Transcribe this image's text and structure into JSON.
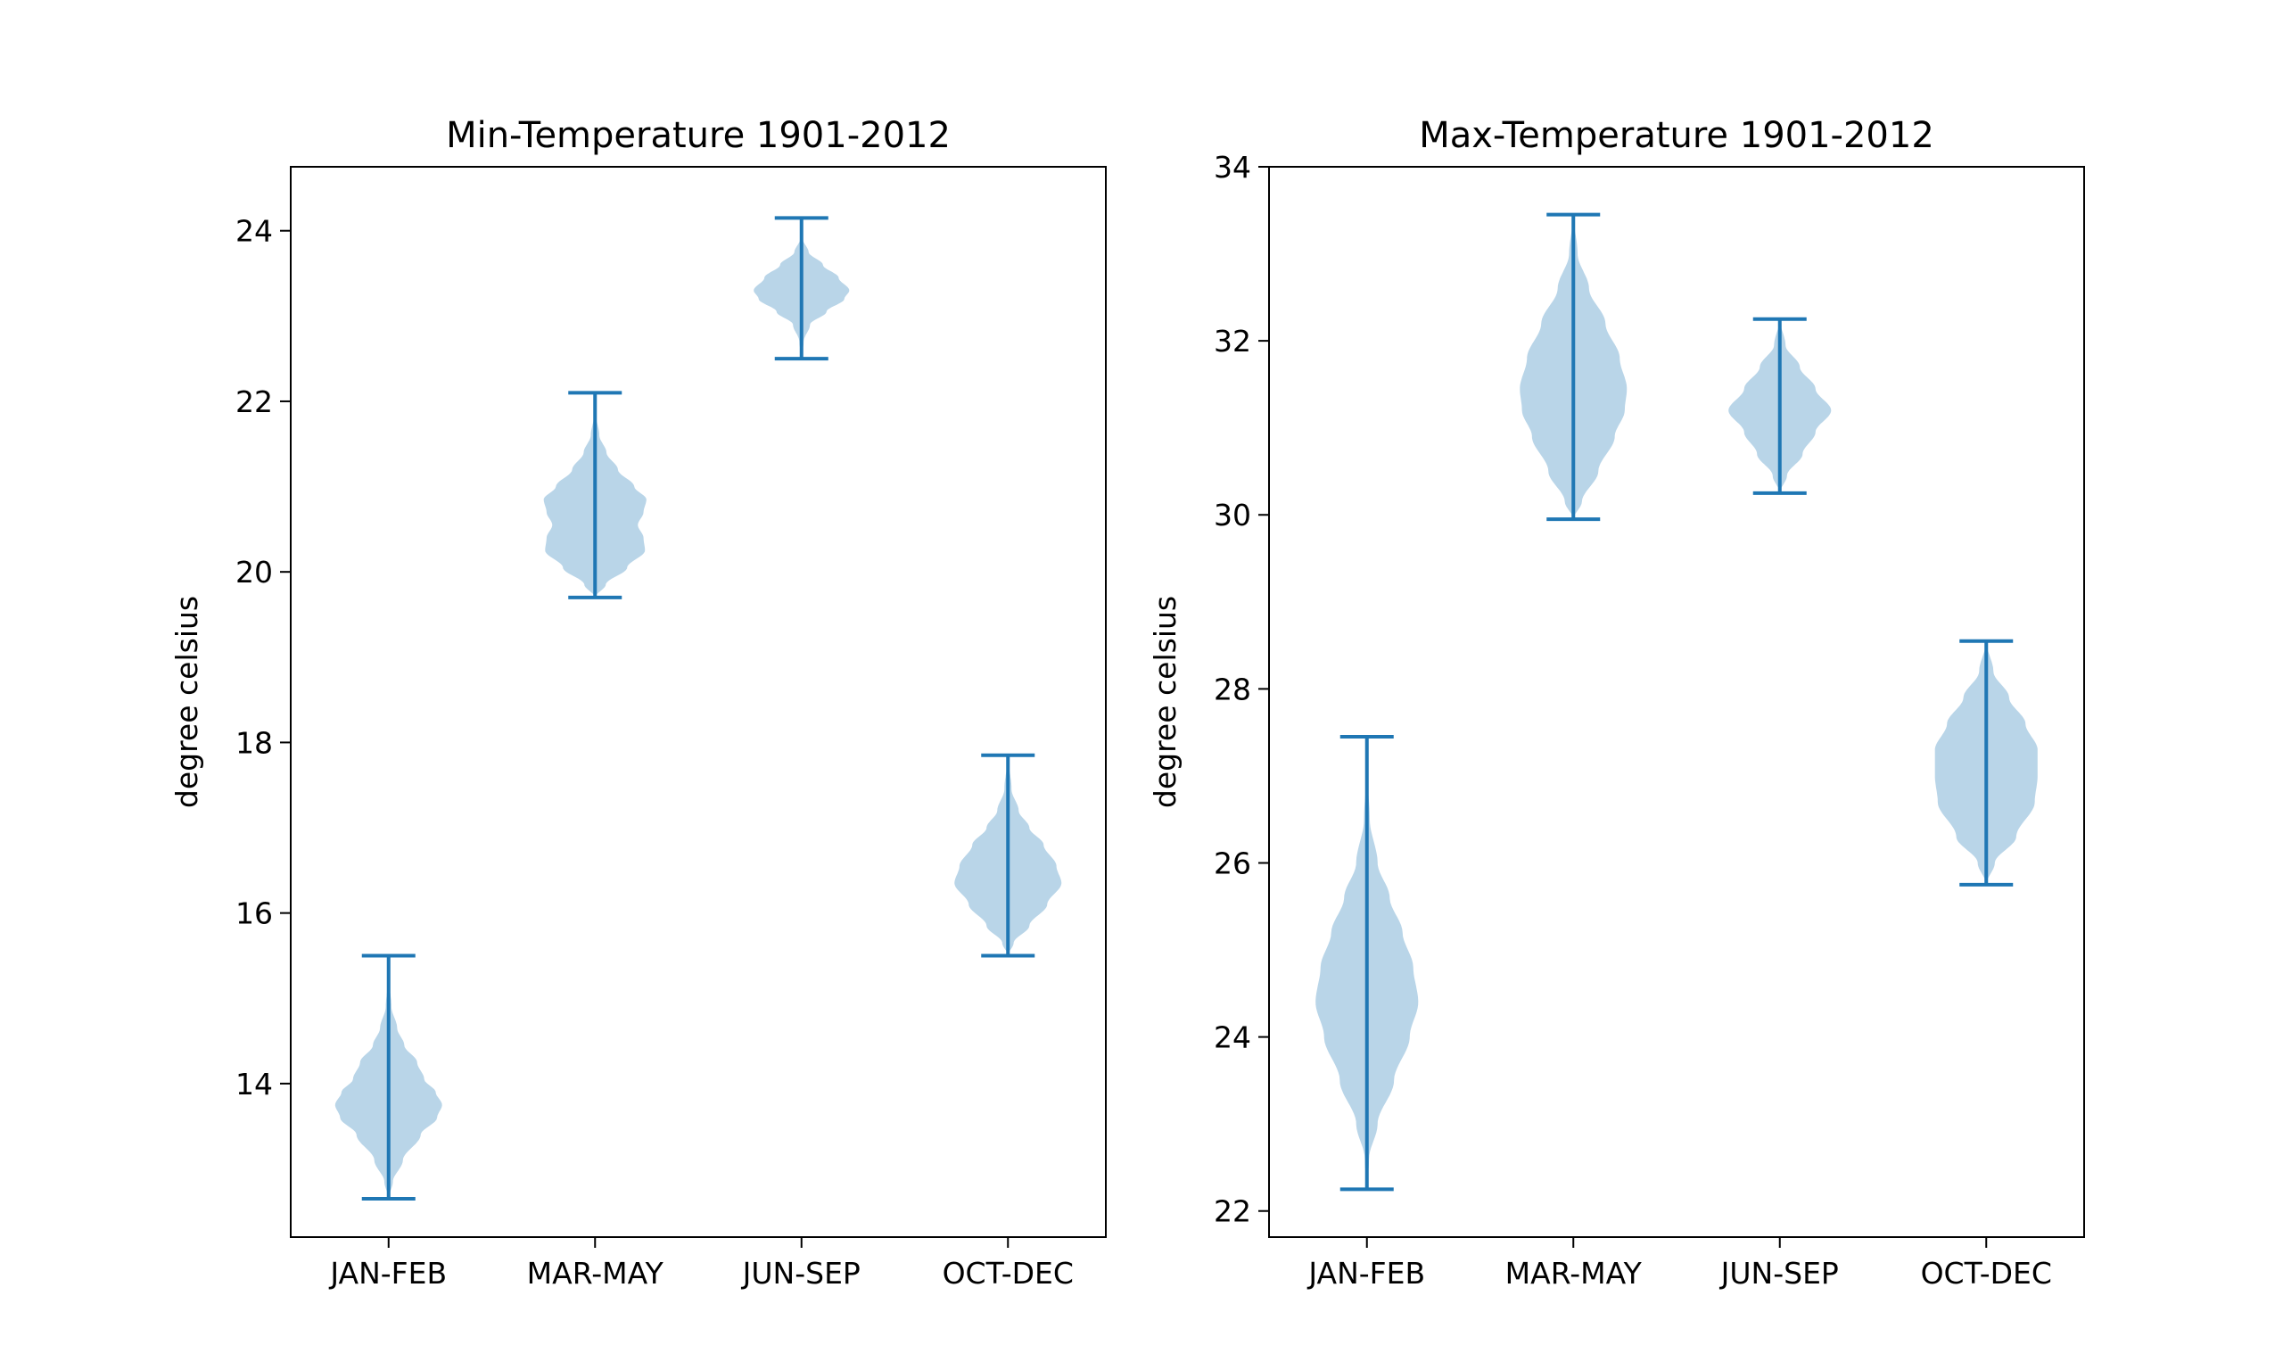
{
  "chart_data": [
    {
      "type": "violin",
      "title": "Min-Temperature 1901-2012",
      "xlabel": "",
      "ylabel": "degree celsius",
      "categories": [
        "JAN-FEB",
        "MAR-MAY",
        "JUN-SEP",
        "OCT-DEC"
      ],
      "ylim": [
        12.2,
        24.75
      ],
      "yticks": [
        14,
        16,
        18,
        20,
        22,
        24
      ],
      "grid": false,
      "series": [
        {
          "min": 12.65,
          "max": 15.5,
          "profile": [
            [
              12.65,
              0.0
            ],
            [
              12.85,
              0.06
            ],
            [
              13.1,
              0.2
            ],
            [
              13.4,
              0.45
            ],
            [
              13.6,
              0.68
            ],
            [
              13.75,
              0.75
            ],
            [
              13.9,
              0.66
            ],
            [
              14.05,
              0.5
            ],
            [
              14.25,
              0.4
            ],
            [
              14.45,
              0.22
            ],
            [
              14.65,
              0.12
            ],
            [
              14.9,
              0.04
            ],
            [
              15.2,
              0.01
            ],
            [
              15.5,
              0.0
            ]
          ]
        },
        {
          "min": 19.7,
          "max": 22.1,
          "profile": [
            [
              19.7,
              0.0
            ],
            [
              19.85,
              0.15
            ],
            [
              20.05,
              0.45
            ],
            [
              20.25,
              0.7
            ],
            [
              20.4,
              0.68
            ],
            [
              20.55,
              0.6
            ],
            [
              20.7,
              0.68
            ],
            [
              20.85,
              0.72
            ],
            [
              21.0,
              0.55
            ],
            [
              21.2,
              0.32
            ],
            [
              21.4,
              0.16
            ],
            [
              21.6,
              0.06
            ],
            [
              21.85,
              0.01
            ],
            [
              22.1,
              0.0
            ]
          ]
        },
        {
          "min": 22.5,
          "max": 24.15,
          "profile": [
            [
              22.5,
              0.0
            ],
            [
              22.7,
              0.03
            ],
            [
              22.9,
              0.12
            ],
            [
              23.05,
              0.35
            ],
            [
              23.2,
              0.6
            ],
            [
              23.3,
              0.67
            ],
            [
              23.45,
              0.52
            ],
            [
              23.6,
              0.3
            ],
            [
              23.75,
              0.1
            ],
            [
              23.9,
              0.02
            ],
            [
              24.15,
              0.0
            ]
          ]
        },
        {
          "min": 15.5,
          "max": 17.85,
          "profile": [
            [
              15.5,
              0.0
            ],
            [
              15.65,
              0.08
            ],
            [
              15.85,
              0.3
            ],
            [
              16.1,
              0.55
            ],
            [
              16.35,
              0.75
            ],
            [
              16.55,
              0.68
            ],
            [
              16.8,
              0.5
            ],
            [
              17.0,
              0.3
            ],
            [
              17.2,
              0.15
            ],
            [
              17.45,
              0.05
            ],
            [
              17.85,
              0.0
            ]
          ]
        }
      ]
    },
    {
      "type": "violin",
      "title": "Max-Temperature 1901-2012",
      "xlabel": "",
      "ylabel": "degree celsius",
      "categories": [
        "JAN-FEB",
        "MAR-MAY",
        "JUN-SEP",
        "OCT-DEC"
      ],
      "ylim": [
        21.7,
        34.0
      ],
      "yticks": [
        22,
        24,
        26,
        28,
        30,
        32,
        34
      ],
      "grid": false,
      "series": [
        {
          "min": 22.25,
          "max": 27.45,
          "profile": [
            [
              22.25,
              0.0
            ],
            [
              22.6,
              0.03
            ],
            [
              23.0,
              0.15
            ],
            [
              23.5,
              0.38
            ],
            [
              24.0,
              0.6
            ],
            [
              24.4,
              0.72
            ],
            [
              24.8,
              0.65
            ],
            [
              25.2,
              0.5
            ],
            [
              25.6,
              0.32
            ],
            [
              26.0,
              0.15
            ],
            [
              26.5,
              0.04
            ],
            [
              27.0,
              0.01
            ],
            [
              27.45,
              0.0
            ]
          ]
        },
        {
          "min": 29.95,
          "max": 33.45,
          "profile": [
            [
              29.95,
              0.0
            ],
            [
              30.15,
              0.12
            ],
            [
              30.5,
              0.35
            ],
            [
              30.9,
              0.58
            ],
            [
              31.2,
              0.72
            ],
            [
              31.45,
              0.75
            ],
            [
              31.8,
              0.65
            ],
            [
              32.2,
              0.45
            ],
            [
              32.6,
              0.22
            ],
            [
              33.0,
              0.06
            ],
            [
              33.45,
              0.0
            ]
          ]
        },
        {
          "min": 30.25,
          "max": 32.25,
          "profile": [
            [
              30.25,
              0.0
            ],
            [
              30.45,
              0.1
            ],
            [
              30.7,
              0.32
            ],
            [
              30.95,
              0.5
            ],
            [
              31.2,
              0.72
            ],
            [
              31.45,
              0.5
            ],
            [
              31.7,
              0.28
            ],
            [
              31.95,
              0.08
            ],
            [
              32.25,
              0.0
            ]
          ]
        },
        {
          "min": 25.75,
          "max": 28.55,
          "profile": [
            [
              25.75,
              0.0
            ],
            [
              26.0,
              0.12
            ],
            [
              26.3,
              0.42
            ],
            [
              26.7,
              0.68
            ],
            [
              27.0,
              0.72
            ],
            [
              27.3,
              0.72
            ],
            [
              27.6,
              0.55
            ],
            [
              27.9,
              0.32
            ],
            [
              28.2,
              0.1
            ],
            [
              28.55,
              0.0
            ]
          ]
        }
      ]
    }
  ],
  "colors": {
    "violin_fill": "#b9d5e8",
    "violin_line": "#1f77b4",
    "axis": "#000000"
  }
}
